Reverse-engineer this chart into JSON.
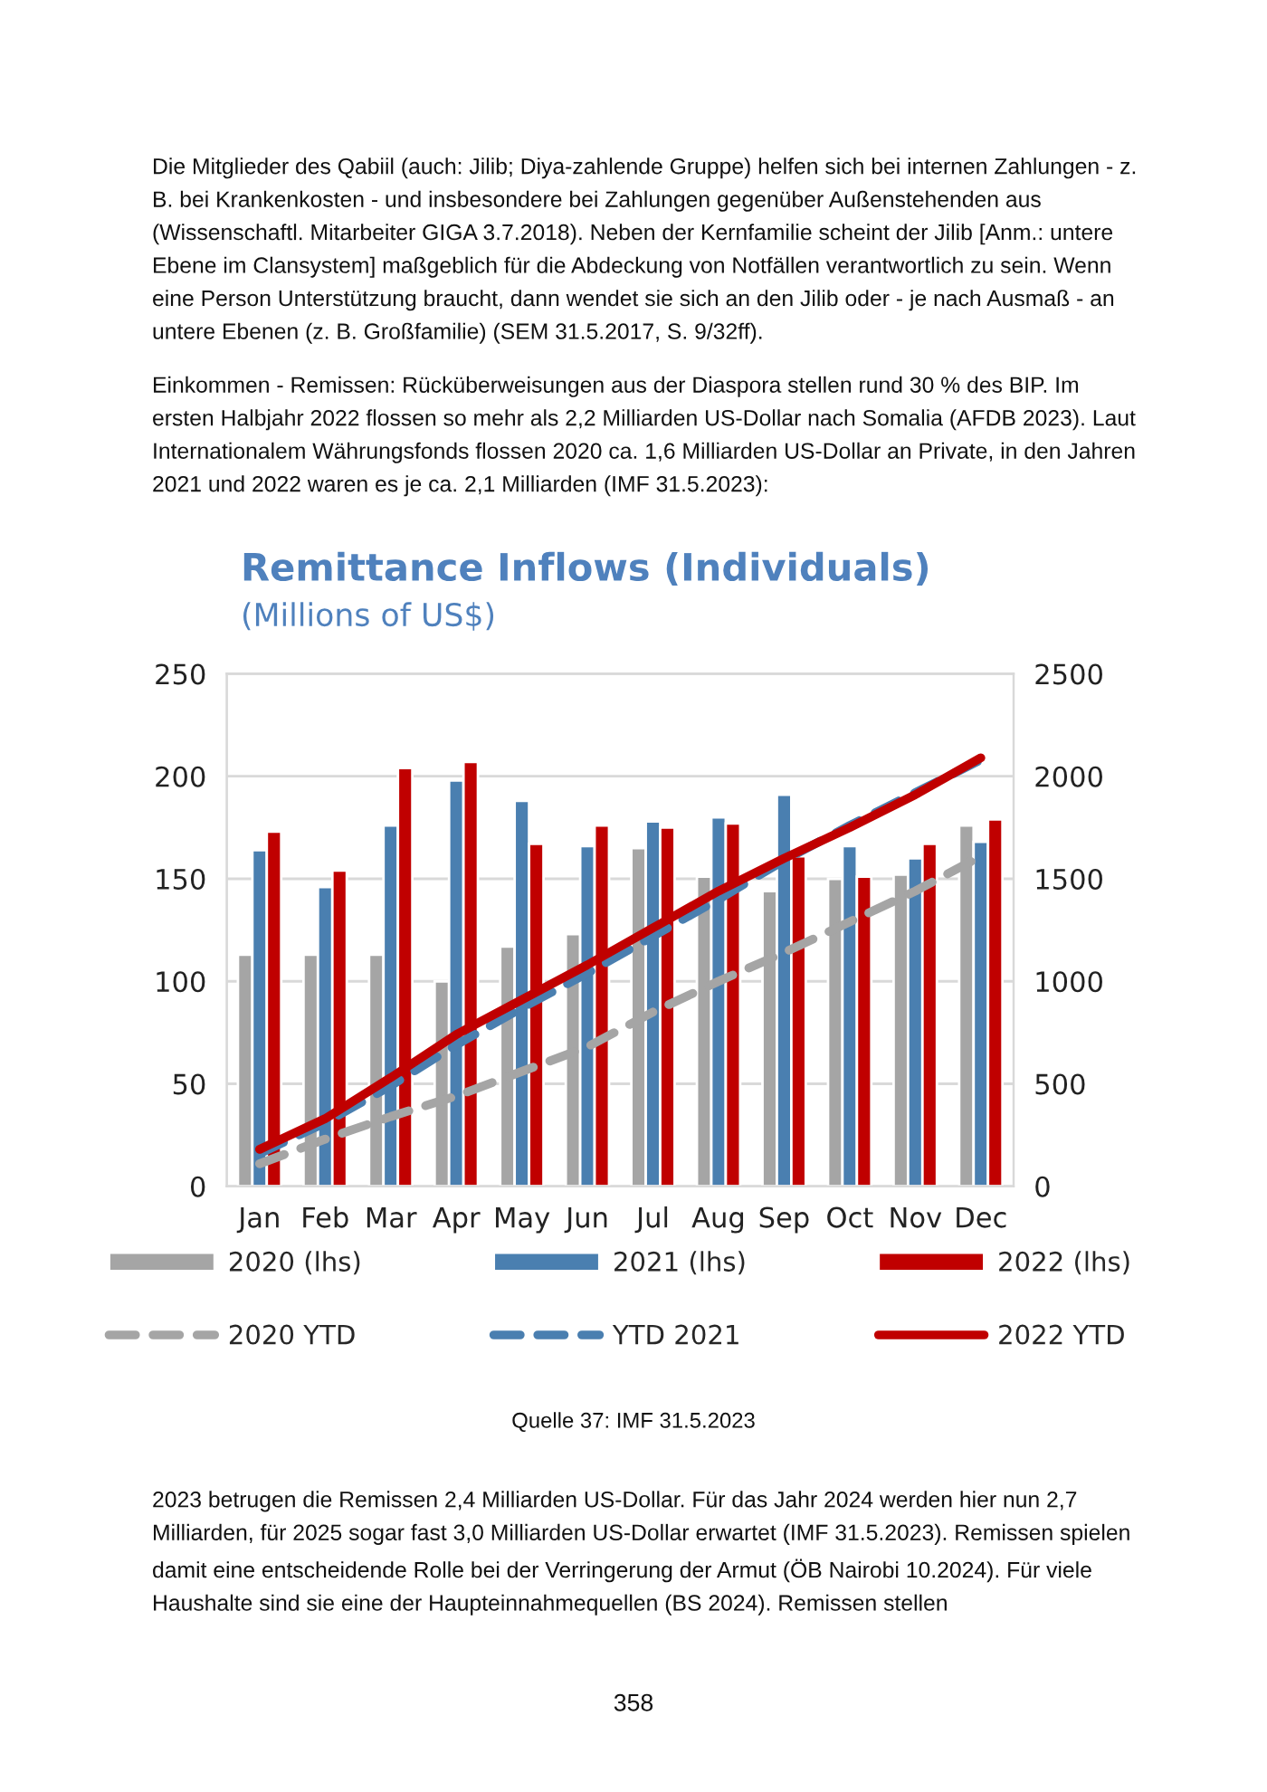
{
  "chart_data": {
    "type": "bar",
    "title": "Remittance Inflows (Individuals)",
    "subtitle": "(Millions of US$)",
    "categories": [
      "Jan",
      "Feb",
      "Mar",
      "Apr",
      "May",
      "Jun",
      "Jul",
      "Aug",
      "Sep",
      "Oct",
      "Nov",
      "Dec"
    ],
    "series": [
      {
        "name": "2020 (lhs)",
        "color": "#a5a5a5",
        "values": [
          113,
          113,
          113,
          100,
          117,
          123,
          165,
          151,
          144,
          150,
          152,
          176
        ]
      },
      {
        "name": "2021 (lhs)",
        "color": "#4a7fb0",
        "values": [
          164,
          146,
          176,
          198,
          188,
          166,
          178,
          180,
          191,
          166,
          160,
          168
        ]
      },
      {
        "name": "2022 (lhs)",
        "color": "#c00000",
        "values": [
          173,
          154,
          204,
          207,
          167,
          176,
          175,
          177,
          161,
          151,
          167,
          179
        ]
      },
      {
        "name": "2020 YTD",
        "type": "line",
        "axis": "y2",
        "line_style": "dashed",
        "color": "#a5a5a5",
        "values": [
          110,
          230,
          340,
          440,
          560,
          680,
          850,
          1000,
          1140,
          1290,
          1440,
          1610
        ]
      },
      {
        "name": "YTD 2021",
        "type": "line",
        "axis": "y2",
        "line_style": "dashed",
        "color": "#4a7fb0",
        "values": [
          160,
          310,
          490,
          690,
          870,
          1040,
          1220,
          1400,
          1590,
          1760,
          1920,
          2080
        ]
      },
      {
        "name": "2022 YTD",
        "type": "line",
        "axis": "y2",
        "line_style": "solid",
        "color": "#c00000",
        "values": [
          180,
          330,
          530,
          740,
          910,
          1080,
          1260,
          1440,
          1600,
          1750,
          1910,
          2090
        ]
      }
    ],
    "ylim": [
      0,
      250
    ],
    "yticks": [
      0,
      50,
      100,
      150,
      200,
      250
    ],
    "y2lim": [
      0,
      2500
    ],
    "y2ticks": [
      0,
      500,
      1000,
      1500,
      2000,
      2500
    ],
    "grid": "y",
    "legend": "bottom",
    "marker": "none",
    "annotations": [
      "Die Mitglieder des Qabiil (auch: Jilib; Diya-zahlende Gruppe) helfen sich bei internen Zahlungen - z. B. bei Krankenkosten - und insbesondere bei Zahlungen gegenüber Außenstehenden aus (Wissenschaftl. Mitarbeiter GIGA 3.7.2018). Neben der Kernfamilie scheint der Jilib [Anm.: untere Ebene im Clansystem] maßgeblich für die Abdeckung von Notfällen verantwortlich zu sein. Wenn eine Person Unterstützung braucht, dann wendet sie sich an den Jilib oder - je nach Ausmaß - an untere Ebenen (z. B. Großfamilie) (SEM 31.5.2017, S. 9/32ff).",
      "Einkommen - Remissen: Rücküberweisungen aus der Diaspora stellen rund 30 % des BIP. Im ersten Halbjahr 2022 flossen so mehr als 2,2 Milliarden US-Dollar nach Somalia (AFDB 2023). Laut Internationalem Währungsfonds flossen 2020 ca. 1,6 Milliarden US-Dollar an Private, in den Jahren 2021 und 2022 waren es je ca. 2,1 Milliarden (IMF 31.5.2023):",
      "Quelle 37: IMF 31.5.2023",
      "2023 betrugen die Remissen 2,4 Milliarden US-Dollar. Für das Jahr 2024 werden hier nun 2,7 Milliarden, für 2025 sogar fast 3,0 Milliarden US-Dollar erwartet (IMF 31.5.2023). Remissen spielen damit eine entscheidende Rolle bei der Verringerung der Armut (ÖB Nairobi 10.2024). Für viele Haushalte sind sie eine der Haupteinnahmequellen (BS 2024). Remissen stellen",
      "358"
    ]
  }
}
